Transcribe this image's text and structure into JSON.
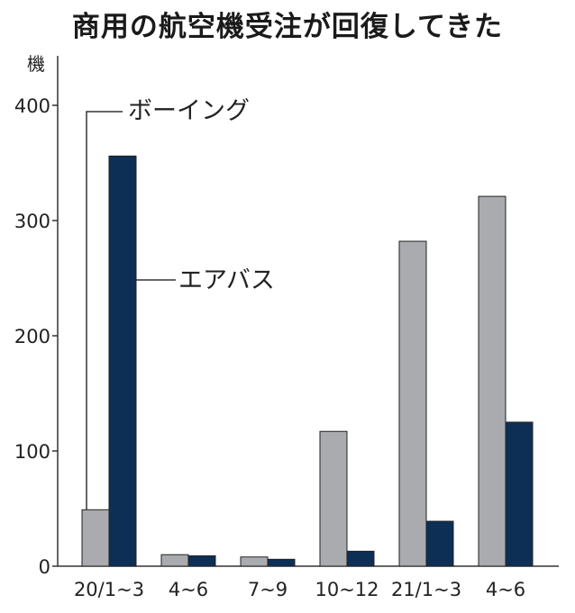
{
  "chart_data": {
    "type": "bar",
    "title": "商用の航空機受注が回復してきた",
    "ylabel": "機",
    "xlabel": "",
    "categories": [
      "20/1~3",
      "4~6",
      "7~9",
      "10~12",
      "21/1~3",
      "4~6"
    ],
    "series": [
      {
        "name": "ボーイング",
        "color": "#a9abae",
        "values": [
          49,
          10,
          8,
          117,
          282,
          321
        ]
      },
      {
        "name": "エアバス",
        "color": "#0d2f55",
        "values": [
          356,
          9,
          6,
          13,
          39,
          125
        ]
      }
    ],
    "yticks": [
      0,
      100,
      200,
      300,
      400
    ],
    "ylim": [
      0,
      440
    ],
    "grid": false,
    "legend": "inline-labels"
  }
}
